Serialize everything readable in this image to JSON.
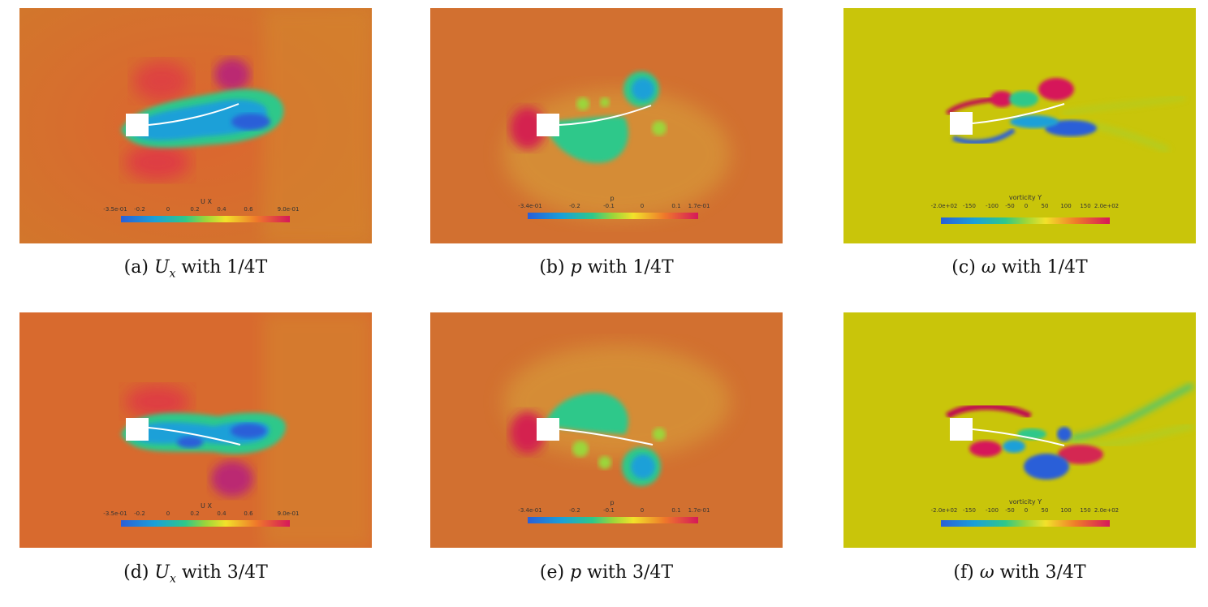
{
  "figure": {
    "panels": [
      {
        "id": "a",
        "field": "Ux",
        "phase": "1/4T",
        "colorbar": {
          "title": "U X",
          "ticks": [
            "-3.5e-01",
            "-0.2",
            "0",
            "0.2",
            "0.4",
            "0.6",
            "9.0e-01"
          ]
        },
        "caption": {
          "label": "(a)",
          "symbol": "U",
          "subscript": "x",
          "text": "with 1/4T"
        }
      },
      {
        "id": "b",
        "field": "p",
        "phase": "1/4T",
        "colorbar": {
          "title": "p",
          "ticks": [
            "-3.4e-01",
            "-0.2",
            "-0.1",
            "0",
            "0.1",
            "1.7e-01"
          ]
        },
        "caption": {
          "label": "(b)",
          "symbol": "p",
          "subscript": "",
          "text": "with 1/4T"
        }
      },
      {
        "id": "c",
        "field": "vorticity",
        "phase": "1/4T",
        "colorbar": {
          "title": "vorticity Y",
          "ticks": [
            "-2.0e+02",
            "-150",
            "-100",
            "-50",
            "0",
            "50",
            "100",
            "150",
            "2.0e+02"
          ]
        },
        "caption": {
          "label": "(c)",
          "symbol": "ω",
          "subscript": "",
          "text": "with 1/4T"
        }
      },
      {
        "id": "d",
        "field": "Ux",
        "phase": "3/4T",
        "colorbar": {
          "title": "U X",
          "ticks": [
            "-3.5e-01",
            "-0.2",
            "0",
            "0.2",
            "0.4",
            "0.6",
            "9.0e-01"
          ]
        },
        "caption": {
          "label": "(d)",
          "symbol": "U",
          "subscript": "x",
          "text": "with 3/4T"
        }
      },
      {
        "id": "e",
        "field": "p",
        "phase": "3/4T",
        "colorbar": {
          "title": "p",
          "ticks": [
            "-3.4e-01",
            "-0.2",
            "-0.1",
            "0",
            "0.1",
            "1.7e-01"
          ]
        },
        "caption": {
          "label": "(e)",
          "symbol": "p",
          "subscript": "",
          "text": "with 3/4T"
        }
      },
      {
        "id": "f",
        "field": "vorticity",
        "phase": "3/4T",
        "colorbar": {
          "title": "vorticity Y",
          "ticks": [
            "-2.0e+02",
            "-150",
            "-100",
            "-50",
            "0",
            "50",
            "100",
            "150",
            "2.0e+02"
          ]
        },
        "caption": {
          "label": "(f)",
          "symbol": "ω",
          "subscript": "",
          "text": "with 3/4T"
        }
      }
    ],
    "colors": {
      "ux_background": "#d26c2c",
      "p_background": "#d27030",
      "vort_background": "#c9c50a",
      "obstacle": "#ffffff"
    }
  }
}
